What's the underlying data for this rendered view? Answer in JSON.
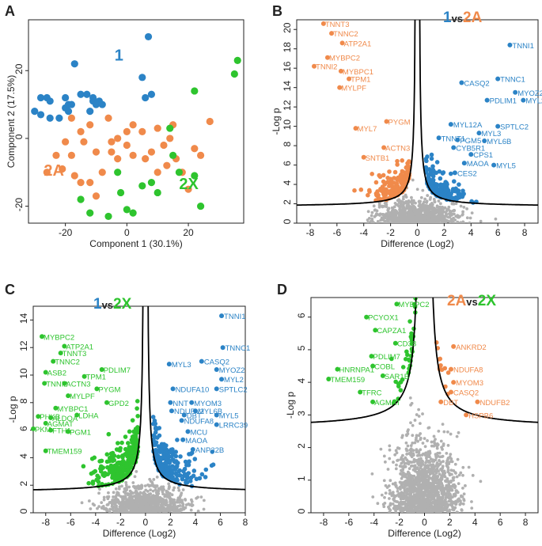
{
  "figure": {
    "colors": {
      "c1": "#2b83c6",
      "c2A": "#f08a4b",
      "c2X": "#2ec42e",
      "ns": "#b0b0b0",
      "curve": "#000000"
    }
  },
  "chart_data": [
    {
      "panel": "A",
      "type": "scatter",
      "xlabel": "Component 1 (30.1%)",
      "ylabel": "Component 2 (17.5%)",
      "xlim": [
        -32,
        38
      ],
      "ylim": [
        -25,
        35
      ],
      "xticks": [
        -20,
        0,
        20
      ],
      "yticks": [
        -20,
        0,
        20
      ],
      "group_labels": [
        {
          "text": "1",
          "group": "1"
        },
        {
          "text": "2A",
          "group": "2A"
        },
        {
          "text": "2X",
          "group": "2X"
        }
      ],
      "series": [
        {
          "group": "1",
          "points": [
            [
              7,
              30
            ],
            [
              -17,
              22
            ],
            [
              -28,
              12
            ],
            [
              -26,
              12
            ],
            [
              -25,
              11
            ],
            [
              -20,
              12
            ],
            [
              -20,
              9
            ],
            [
              -19,
              10
            ],
            [
              -18,
              10
            ],
            [
              -15,
              13
            ],
            [
              -13,
              13
            ],
            [
              -11,
              11
            ],
            [
              -9,
              11
            ],
            [
              -10,
              10
            ],
            [
              -12,
              8
            ],
            [
              -11,
              12
            ],
            [
              -8,
              10
            ],
            [
              5,
              18
            ],
            [
              6,
              12
            ],
            [
              8,
              13
            ],
            [
              -30,
              8
            ],
            [
              -28,
              7
            ],
            [
              -25,
              6
            ],
            [
              -22,
              6
            ],
            [
              -19,
              8
            ]
          ]
        },
        {
          "group": "2A",
          "points": [
            [
              -18,
              6
            ],
            [
              -12,
              4
            ],
            [
              -15,
              2
            ],
            [
              -14,
              -1
            ],
            [
              -6,
              6
            ],
            [
              -3,
              0
            ],
            [
              0,
              2
            ],
            [
              2,
              4
            ],
            [
              -5,
              -4
            ],
            [
              -10,
              -4
            ],
            [
              -20,
              -1
            ],
            [
              -23,
              -5
            ],
            [
              -26,
              -10
            ],
            [
              -21,
              -9
            ],
            [
              -18,
              -5
            ],
            [
              -17,
              -11
            ],
            [
              -15,
              -13
            ],
            [
              -12,
              -13
            ],
            [
              -10,
              -17
            ],
            [
              -8,
              -10
            ],
            [
              -3,
              -6
            ],
            [
              0,
              -2
            ],
            [
              2,
              -5
            ],
            [
              5,
              2
            ],
            [
              8,
              -4
            ],
            [
              10,
              3
            ],
            [
              12,
              -2
            ],
            [
              14,
              0
            ],
            [
              15,
              4
            ],
            [
              16,
              -6
            ],
            [
              18,
              -10
            ],
            [
              20,
              -15
            ],
            [
              22,
              -3
            ],
            [
              24,
              -5
            ],
            [
              27,
              5
            ],
            [
              10,
              -10
            ],
            [
              6,
              -6
            ],
            [
              13,
              -8
            ],
            [
              -5,
              -1
            ]
          ]
        },
        {
          "group": "2X",
          "points": [
            [
              36,
              23
            ],
            [
              35,
              19
            ],
            [
              22,
              14
            ],
            [
              14,
              3
            ],
            [
              15,
              -5
            ],
            [
              17,
              -10
            ],
            [
              22,
              -11
            ],
            [
              24,
              -20
            ],
            [
              8,
              -13
            ],
            [
              10,
              -16
            ],
            [
              -2,
              -16
            ],
            [
              -6,
              -23
            ],
            [
              0,
              -21
            ],
            [
              2,
              -22
            ],
            [
              -15,
              -18
            ],
            [
              -12,
              -22
            ],
            [
              -3,
              -10
            ],
            [
              5,
              -14
            ]
          ]
        }
      ]
    },
    {
      "panel": "B",
      "type": "scatter",
      "title_parts": [
        "1",
        "vs",
        "2A"
      ],
      "xlabel": "Difference (Log2)",
      "ylabel": "-Log p",
      "xlim": [
        -9,
        9
      ],
      "ylim": [
        0,
        21
      ],
      "xticks": [
        -8,
        -6,
        -4,
        -2,
        0,
        2,
        4,
        6,
        8
      ],
      "yticks": [
        0,
        2,
        4,
        6,
        8,
        10,
        12,
        14,
        16,
        18,
        20
      ],
      "curve": {
        "c": 1.5,
        "s0": 0.1,
        "floor": 1.7
      },
      "labels": [
        {
          "text": "TNNT3",
          "x": -7.0,
          "y": 20.6,
          "group": "2A"
        },
        {
          "text": "TNNC2",
          "x": -6.4,
          "y": 19.6,
          "group": "2A"
        },
        {
          "text": "ATP2A1",
          "x": -5.6,
          "y": 18.6,
          "group": "2A"
        },
        {
          "text": "MYBPC2",
          "x": -6.7,
          "y": 17.1,
          "group": "2A"
        },
        {
          "text": "TNNI2",
          "x": -7.7,
          "y": 16.2,
          "group": "2A"
        },
        {
          "text": "MYBPC1",
          "x": -5.7,
          "y": 15.7,
          "group": "2A"
        },
        {
          "text": "TPM1",
          "x": -5.1,
          "y": 14.9,
          "group": "2A"
        },
        {
          "text": "MYLPF",
          "x": -5.8,
          "y": 14.0,
          "group": "2A"
        },
        {
          "text": "PYGM",
          "x": -2.3,
          "y": 10.5,
          "group": "2A"
        },
        {
          "text": "MYL7",
          "x": -4.6,
          "y": 9.8,
          "group": "2A"
        },
        {
          "text": "ACTN3",
          "x": -2.5,
          "y": 7.8,
          "group": "2A"
        },
        {
          "text": "SNTB1",
          "x": -4.0,
          "y": 6.8,
          "group": "2A"
        },
        {
          "text": "TNNI1",
          "x": 6.9,
          "y": 18.4,
          "group": "1"
        },
        {
          "text": "TNNC1",
          "x": 6.0,
          "y": 14.9,
          "group": "1"
        },
        {
          "text": "CASQ2",
          "x": 3.3,
          "y": 14.5,
          "group": "1"
        },
        {
          "text": "MYOZ2",
          "x": 7.3,
          "y": 13.5,
          "group": "1"
        },
        {
          "text": "PDLIM1",
          "x": 5.2,
          "y": 12.7,
          "group": "1"
        },
        {
          "text": "MYL2",
          "x": 7.9,
          "y": 12.7,
          "group": "1"
        },
        {
          "text": "MYL12A",
          "x": 2.5,
          "y": 10.2,
          "group": "1"
        },
        {
          "text": "SPTLC2",
          "x": 6.0,
          "y": 10.0,
          "group": "1"
        },
        {
          "text": "MYL3",
          "x": 4.6,
          "y": 9.3,
          "group": "1"
        },
        {
          "text": "TNNT1",
          "x": 1.6,
          "y": 8.8,
          "group": "1"
        },
        {
          "text": "PGM5",
          "x": 3.0,
          "y": 8.6,
          "group": "1"
        },
        {
          "text": "MYL6B",
          "x": 5.0,
          "y": 8.5,
          "group": "1"
        },
        {
          "text": "CYB5R1",
          "x": 2.7,
          "y": 7.8,
          "group": "1"
        },
        {
          "text": "CPS1",
          "x": 4.0,
          "y": 7.1,
          "group": "1"
        },
        {
          "text": "MAOA",
          "x": 3.5,
          "y": 6.2,
          "group": "1"
        },
        {
          "text": "MYL5",
          "x": 5.7,
          "y": 6.0,
          "group": "1"
        },
        {
          "text": "CES2",
          "x": 2.8,
          "y": 5.2,
          "group": "1"
        }
      ]
    },
    {
      "panel": "C",
      "type": "scatter",
      "title_parts": [
        "1",
        "vs",
        "2X"
      ],
      "xlabel": "Difference (Log2)",
      "ylabel": "-Log p",
      "xlim": [
        -9,
        8
      ],
      "ylim": [
        0,
        15
      ],
      "xticks": [
        -8,
        -6,
        -4,
        -2,
        0,
        2,
        4,
        6,
        8
      ],
      "yticks": [
        0,
        2,
        4,
        6,
        8,
        10,
        12,
        14
      ],
      "curve": {
        "c": 1.5,
        "s0": 0.1,
        "floor": 1.5
      },
      "labels": [
        {
          "text": "MYBPC2",
          "x": -8.3,
          "y": 12.8,
          "group": "2X"
        },
        {
          "text": "ATP2A1",
          "x": -6.5,
          "y": 12.1,
          "group": "2X"
        },
        {
          "text": "TNNT3",
          "x": -6.8,
          "y": 11.6,
          "group": "2X"
        },
        {
          "text": "TNNC2",
          "x": -7.4,
          "y": 11.0,
          "group": "2X"
        },
        {
          "text": "PDLIM7",
          "x": -3.5,
          "y": 10.4,
          "group": "2X"
        },
        {
          "text": "ASB2",
          "x": -8.0,
          "y": 10.2,
          "group": "2X"
        },
        {
          "text": "TPM1",
          "x": -4.9,
          "y": 9.9,
          "group": "2X"
        },
        {
          "text": "TNNI2",
          "x": -8.1,
          "y": 9.4,
          "group": "2X"
        },
        {
          "text": "ACTN3",
          "x": -6.5,
          "y": 9.4,
          "group": "2X"
        },
        {
          "text": "PYGM",
          "x": -3.9,
          "y": 9.0,
          "group": "2X"
        },
        {
          "text": "MYLPF",
          "x": -6.2,
          "y": 8.5,
          "group": "2X"
        },
        {
          "text": "GPD2",
          "x": -3.1,
          "y": 8.0,
          "group": "2X"
        },
        {
          "text": "MYBPC1",
          "x": -7.2,
          "y": 7.6,
          "group": "2X"
        },
        {
          "text": "LDHA",
          "x": -5.5,
          "y": 7.1,
          "group": "2X"
        },
        {
          "text": "PHKB",
          "x": -8.6,
          "y": 7.0,
          "group": "2X"
        },
        {
          "text": "ALDOA",
          "x": -7.6,
          "y": 6.9,
          "group": "2X"
        },
        {
          "text": "AGMAT",
          "x": -8.0,
          "y": 6.5,
          "group": "2X"
        },
        {
          "text": "PKM",
          "x": -9.0,
          "y": 6.1,
          "group": "2X"
        },
        {
          "text": "FTH1",
          "x": -7.6,
          "y": 6.0,
          "group": "2X"
        },
        {
          "text": "PGM1",
          "x": -6.2,
          "y": 5.9,
          "group": "2X"
        },
        {
          "text": "TMEM159",
          "x": -8.0,
          "y": 4.5,
          "group": "2X"
        },
        {
          "text": "TNNI1",
          "x": 6.1,
          "y": 14.3,
          "group": "1"
        },
        {
          "text": "TNNC1",
          "x": 6.2,
          "y": 12.0,
          "group": "1"
        },
        {
          "text": "CASQ2",
          "x": 4.5,
          "y": 11.0,
          "group": "1"
        },
        {
          "text": "MYL3",
          "x": 1.9,
          "y": 10.8,
          "group": "1"
        },
        {
          "text": "MYOZ2",
          "x": 5.7,
          "y": 10.4,
          "group": "1"
        },
        {
          "text": "MYL2",
          "x": 6.1,
          "y": 9.7,
          "group": "1"
        },
        {
          "text": "NDUFA10",
          "x": 2.2,
          "y": 9.0,
          "group": "1"
        },
        {
          "text": "SPTLC2",
          "x": 5.7,
          "y": 9.0,
          "group": "1"
        },
        {
          "text": "NNT",
          "x": 2.0,
          "y": 8.0,
          "group": "1"
        },
        {
          "text": "MYOM3",
          "x": 3.7,
          "y": 8.0,
          "group": "1"
        },
        {
          "text": "NDUFV2",
          "x": 2.1,
          "y": 7.4,
          "group": "1"
        },
        {
          "text": "MYL6B",
          "x": 4.0,
          "y": 7.4,
          "group": "1"
        },
        {
          "text": "DBT",
          "x": 3.1,
          "y": 7.1,
          "group": "1"
        },
        {
          "text": "MYL5",
          "x": 5.7,
          "y": 7.1,
          "group": "1"
        },
        {
          "text": "NDUFA8",
          "x": 2.9,
          "y": 6.7,
          "group": "1"
        },
        {
          "text": "LRRC39",
          "x": 5.7,
          "y": 6.4,
          "group": "1"
        },
        {
          "text": "MCU",
          "x": 3.4,
          "y": 5.9,
          "group": "1"
        },
        {
          "text": "MAOA",
          "x": 3.0,
          "y": 5.3,
          "group": "1"
        },
        {
          "text": "ANP32B",
          "x": 3.8,
          "y": 4.6,
          "group": "1"
        }
      ]
    },
    {
      "panel": "D",
      "type": "scatter",
      "title_parts": [
        "2A",
        "vs",
        "2X"
      ],
      "xlabel": "Difference (Log2)",
      "ylabel": "-Log p",
      "xlim": [
        -9,
        9
      ],
      "ylim": [
        0,
        6.6
      ],
      "xticks": [
        -8,
        -6,
        -4,
        -2,
        0,
        2,
        4,
        6,
        8
      ],
      "yticks": [
        0,
        1,
        2,
        3,
        4,
        5,
        6
      ],
      "curve": {
        "c": 1.5,
        "s0": 0.3,
        "floor": 2.6
      },
      "labels": [
        {
          "text": "MYBPC2",
          "x": -2.2,
          "y": 6.4,
          "group": "2X"
        },
        {
          "text": "PCYOX1",
          "x": -4.6,
          "y": 6.0,
          "group": "2X"
        },
        {
          "text": "CAPZA1",
          "x": -3.9,
          "y": 5.6,
          "group": "2X"
        },
        {
          "text": "CD38",
          "x": -2.3,
          "y": 5.2,
          "group": "2X"
        },
        {
          "text": "PDLIM7",
          "x": -4.2,
          "y": 4.8,
          "group": "2X"
        },
        {
          "text": "COBL",
          "x": -4.1,
          "y": 4.5,
          "group": "2X"
        },
        {
          "text": "SAR1B",
          "x": -3.3,
          "y": 4.2,
          "group": "2X"
        },
        {
          "text": "HNRNPA1",
          "x": -6.9,
          "y": 4.4,
          "group": "2X"
        },
        {
          "text": "TMEM159",
          "x": -7.6,
          "y": 4.1,
          "group": "2X"
        },
        {
          "text": "TFRC",
          "x": -5.1,
          "y": 3.7,
          "group": "2X"
        },
        {
          "text": "AGMAT",
          "x": -4.1,
          "y": 3.4,
          "group": "2X"
        },
        {
          "text": "ANKRD2",
          "x": 2.3,
          "y": 5.1,
          "group": "2A"
        },
        {
          "text": "NDUFA8",
          "x": 2.1,
          "y": 4.4,
          "group": "2A"
        },
        {
          "text": "MYOM3",
          "x": 2.3,
          "y": 4.0,
          "group": "2A"
        },
        {
          "text": "CASQ2",
          "x": 2.1,
          "y": 3.7,
          "group": "2A"
        },
        {
          "text": "DBT",
          "x": 1.3,
          "y": 3.4,
          "group": "2A"
        },
        {
          "text": "NDUFB2",
          "x": 4.2,
          "y": 3.4,
          "group": "2A"
        },
        {
          "text": "HSPB6",
          "x": 3.3,
          "y": 3.0,
          "group": "2A"
        }
      ]
    }
  ]
}
